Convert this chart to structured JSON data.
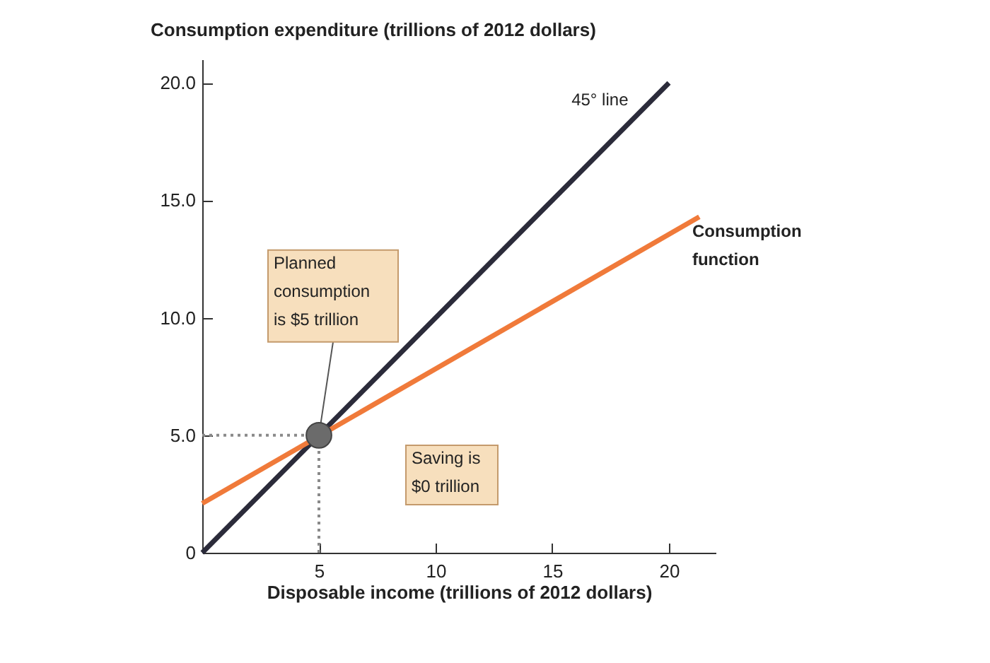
{
  "chart_data": {
    "type": "line",
    "xlabel": "Disposable income (trillions of 2012 dollars)",
    "ylabel": "Consumption expenditure (trillions of 2012 dollars)",
    "xlim": [
      0,
      22
    ],
    "ylim": [
      0,
      21
    ],
    "xticks": [
      5,
      10,
      15,
      20
    ],
    "yticks": [
      {
        "value": 0,
        "label": "0"
      },
      {
        "value": 5,
        "label": "5.0"
      },
      {
        "value": 10,
        "label": "10.0"
      },
      {
        "value": 15,
        "label": "15.0"
      },
      {
        "value": 20,
        "label": "20.0"
      }
    ],
    "series": [
      {
        "type": "line",
        "color": "#8a8a8a",
        "line_style": "dotted",
        "x": [
          0,
          5
        ],
        "values": [
          5,
          5
        ]
      },
      {
        "type": "line",
        "color": "#8a8a8a",
        "line_style": "dotted",
        "x": [
          5,
          5
        ],
        "values": [
          0,
          5
        ]
      },
      {
        "type": "line",
        "color": "#2b2b3a",
        "x": [
          0,
          20
        ],
        "values": [
          0,
          20
        ]
      },
      {
        "type": "line",
        "color": "#f07a3a",
        "x": [
          0,
          21.3
        ],
        "values": [
          2.1,
          14.3
        ]
      },
      {
        "type": "scatter",
        "color": "#6b6b6b",
        "marker": "circle",
        "x": [
          5
        ],
        "values": [
          5
        ]
      }
    ],
    "annotations": [
      {
        "text": "45° line",
        "x": 18.5,
        "y": 18.5
      },
      {
        "text": "Consumption function",
        "x": 21.3,
        "y": 14.3
      },
      {
        "text": "Planned consumption is $5 trillion",
        "x": 5,
        "y": 5
      },
      "Saving is $0 trillion"
    ]
  }
}
